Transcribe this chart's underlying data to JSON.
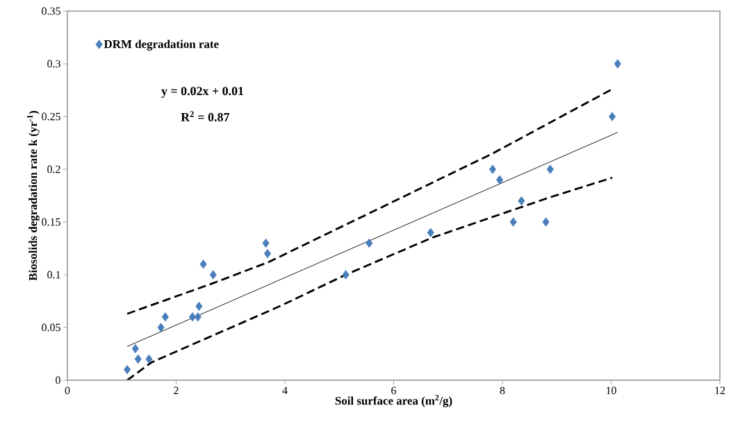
{
  "chart_data": {
    "type": "scatter",
    "xlabel": "Soil surface area (m$^{2}$/g)",
    "ylabel": "Biosolids degradation rate k (yr$^{-1}$)",
    "annotations": [
      "y = 0.02x + 0.01",
      "R$^{2}$ = 0.87"
    ],
    "xlim": [
      0,
      12
    ],
    "ylim": [
      0,
      0.35
    ],
    "xticks": [
      0,
      2,
      4,
      6,
      8,
      10,
      12
    ],
    "yticks": [
      0,
      0.05,
      0.1,
      0.15,
      0.2,
      0.25,
      0.3,
      0.35
    ],
    "grid": false,
    "legend": "top left",
    "series": [
      {
        "name": "DRM degradation rate",
        "marker": "diamond",
        "color": "#4a7ebb",
        "x": [
          1.1,
          1.25,
          1.3,
          1.5,
          1.72,
          1.8,
          2.3,
          2.4,
          2.42,
          2.5,
          2.68,
          3.65,
          3.68,
          5.12,
          5.55,
          6.68,
          7.82,
          7.95,
          8.2,
          8.35,
          8.8,
          8.88,
          10.02,
          10.12
        ],
        "values": [
          0.01,
          0.03,
          0.02,
          0.02,
          0.05,
          0.06,
          0.06,
          0.06,
          0.07,
          0.11,
          0.1,
          0.13,
          0.12,
          0.1,
          0.13,
          0.14,
          0.2,
          0.19,
          0.15,
          0.17,
          0.15,
          0.2,
          0.25,
          0.3
        ]
      },
      {
        "type": "line",
        "marker": "none",
        "color": "#000000",
        "line_style": "solid",
        "x": [
          1.1,
          10.12
        ],
        "values": [
          0.032,
          0.235
        ]
      },
      {
        "type": "line",
        "marker": "none",
        "color": "#000000",
        "line_style": "dashed",
        "x": [
          1.1,
          2.68,
          3.7,
          7.82,
          10.02
        ],
        "values": [
          0.063,
          0.092,
          0.112,
          0.215,
          0.276
        ]
      },
      {
        "type": "line",
        "marker": "none",
        "color": "#000000",
        "line_style": "dashed",
        "x": [
          1.1,
          1.55,
          3.9,
          5.12,
          6.7,
          8.85,
          10.02
        ],
        "values": [
          0.0,
          0.017,
          0.07,
          0.1,
          0.135,
          0.173,
          0.192
        ]
      }
    ]
  }
}
